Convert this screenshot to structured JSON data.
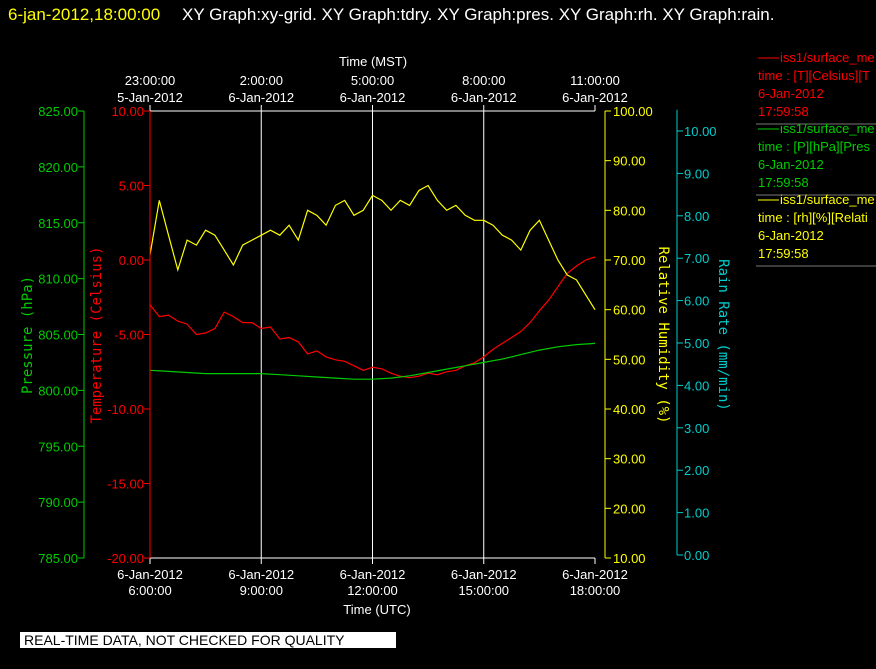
{
  "header": {
    "timestamp": "6-jan-2012,18:00:00",
    "title": "XY Graph:xy-grid.  XY Graph:tdry.  XY Graph:pres.  XY Graph:rh.  XY Graph:rain."
  },
  "footer": "REAL-TIME DATA, NOT CHECKED FOR QUALITY",
  "colors": {
    "background": "#000000",
    "temperature": "#ff0000",
    "pressure": "#00cc00",
    "humidity": "#ffff00",
    "rain": "#00cccc",
    "grid": "#ffffff"
  },
  "legend": [
    {
      "line1": "iss1/surface_me",
      "line2": "time : [T][Celsius][T",
      "line3": "6-Jan-2012",
      "line4": "17:59:58",
      "color": "#ff0000"
    },
    {
      "line1": "iss1/surface_me",
      "line2": "time : [P][hPa][Pres",
      "line3": "6-Jan-2012",
      "line4": "17:59:58",
      "color": "#00cc00"
    },
    {
      "line1": "iss1/surface_me",
      "line2": "time : [rh][%][Relati",
      "line3": "6-Jan-2012",
      "line4": "17:59:58",
      "color": "#ffff00"
    }
  ],
  "chart_data": {
    "type": "line",
    "grid": true,
    "x_bottom": {
      "label": "Time (UTC)",
      "range": [
        "6-Jan-2012 6:00:00",
        "6-Jan-2012 18:00:00"
      ],
      "ticks": [
        {
          "date": "6-Jan-2012",
          "time": "6:00:00"
        },
        {
          "date": "6-Jan-2012",
          "time": "9:00:00"
        },
        {
          "date": "6-Jan-2012",
          "time": "12:00:00"
        },
        {
          "date": "6-Jan-2012",
          "time": "15:00:00"
        },
        {
          "date": "6-Jan-2012",
          "time": "18:00:00"
        }
      ]
    },
    "x_top": {
      "label": "Time (MST)",
      "ticks": [
        {
          "time": "23:00:00",
          "date": "5-Jan-2012"
        },
        {
          "time": "2:00:00",
          "date": "6-Jan-2012"
        },
        {
          "time": "5:00:00",
          "date": "6-Jan-2012"
        },
        {
          "time": "8:00:00",
          "date": "6-Jan-2012"
        },
        {
          "time": "11:00:00",
          "date": "6-Jan-2012"
        }
      ]
    },
    "y_axes": {
      "pressure": {
        "label": "Pressure (hPa)",
        "range": [
          785,
          825
        ],
        "ticks": [
          "825.00",
          "820.00",
          "815.00",
          "810.00",
          "805.00",
          "800.00",
          "795.00",
          "790.00",
          "785.00"
        ]
      },
      "temperature": {
        "label": "Temperature (Celsius)",
        "range": [
          -20,
          10
        ],
        "ticks": [
          "10.00",
          "5.00",
          "0.00",
          "-5.00",
          "-10.00",
          "-15.00",
          "-20.00"
        ]
      },
      "humidity": {
        "label": "Relative Humidity (%)",
        "range": [
          10,
          100
        ],
        "ticks": [
          "100.00",
          "90.00",
          "80.00",
          "70.00",
          "60.00",
          "50.00",
          "40.00",
          "30.00",
          "20.00",
          "10.00"
        ]
      },
      "rain": {
        "label": "Rain Rate (mm/min)",
        "range": [
          0,
          10.5
        ],
        "ticks": [
          "10.00",
          "9.00",
          "8.00",
          "7.00",
          "6.00",
          "5.00",
          "4.00",
          "3.00",
          "2.00",
          "1.00",
          "0.00"
        ]
      }
    },
    "series": [
      {
        "key": "temperature",
        "x_hours": [
          6.0,
          6.25,
          6.5,
          6.75,
          7.0,
          7.25,
          7.5,
          7.75,
          8.0,
          8.25,
          8.5,
          8.75,
          9.0,
          9.25,
          9.5,
          9.75,
          10.0,
          10.25,
          10.5,
          10.75,
          11.0,
          11.25,
          11.5,
          11.75,
          12.0,
          12.25,
          12.5,
          12.75,
          13.0,
          13.25,
          13.5,
          13.75,
          14.0,
          14.25,
          14.5,
          14.75,
          15.0,
          15.25,
          15.5,
          15.75,
          16.0,
          16.25,
          16.5,
          16.75,
          17.0,
          17.25,
          17.5,
          17.75,
          18.0
        ],
        "y": [
          -3.0,
          -3.8,
          -3.7,
          -4.1,
          -4.3,
          -5.0,
          -4.9,
          -4.6,
          -3.5,
          -3.8,
          -4.2,
          -4.2,
          -4.6,
          -4.5,
          -5.3,
          -5.2,
          -5.5,
          -6.3,
          -6.1,
          -6.5,
          -6.7,
          -6.8,
          -7.1,
          -7.4,
          -7.2,
          -7.3,
          -7.6,
          -7.8,
          -7.9,
          -7.8,
          -7.6,
          -7.7,
          -7.5,
          -7.4,
          -7.1,
          -6.9,
          -6.5,
          -6.0,
          -5.6,
          -5.2,
          -4.8,
          -4.2,
          -3.4,
          -2.7,
          -1.8,
          -0.9,
          -0.4,
          0.0,
          0.2
        ]
      },
      {
        "key": "pressure",
        "x_hours": [
          6.0,
          6.5,
          7.0,
          7.5,
          8.0,
          8.5,
          9.0,
          9.5,
          10.0,
          10.5,
          11.0,
          11.5,
          12.0,
          12.5,
          13.0,
          13.5,
          14.0,
          14.5,
          15.0,
          15.5,
          16.0,
          16.5,
          17.0,
          17.5,
          18.0
        ],
        "y": [
          801.8,
          801.7,
          801.6,
          801.5,
          801.5,
          801.5,
          801.5,
          801.4,
          801.3,
          801.2,
          801.1,
          801.0,
          801.0,
          801.1,
          801.3,
          801.6,
          801.9,
          802.2,
          802.5,
          802.8,
          803.2,
          803.6,
          803.9,
          804.1,
          804.2
        ]
      },
      {
        "key": "humidity",
        "x_hours": [
          6.0,
          6.25,
          6.5,
          6.75,
          7.0,
          7.25,
          7.5,
          7.75,
          8.0,
          8.25,
          8.5,
          8.75,
          9.0,
          9.25,
          9.5,
          9.75,
          10.0,
          10.25,
          10.5,
          10.75,
          11.0,
          11.25,
          11.5,
          11.75,
          12.0,
          12.25,
          12.5,
          12.75,
          13.0,
          13.25,
          13.5,
          13.75,
          14.0,
          14.25,
          14.5,
          14.75,
          15.0,
          15.25,
          15.5,
          15.75,
          16.0,
          16.25,
          16.5,
          16.75,
          17.0,
          17.25,
          17.5,
          17.75,
          18.0
        ],
        "y": [
          71.0,
          82.0,
          75.0,
          68.0,
          74.0,
          73.0,
          76.0,
          75.0,
          72.0,
          69.0,
          73.0,
          74.0,
          75.0,
          76.0,
          75.0,
          77.0,
          74.0,
          80.0,
          79.0,
          77.0,
          81.0,
          82.0,
          79.0,
          80.0,
          83.0,
          82.0,
          80.0,
          82.0,
          81.0,
          84.0,
          85.0,
          82.0,
          80.0,
          81.0,
          79.0,
          78.0,
          78.0,
          77.0,
          75.0,
          74.0,
          72.0,
          76.0,
          78.0,
          74.0,
          70.0,
          67.0,
          66.0,
          63.0,
          60.0
        ]
      }
    ]
  }
}
